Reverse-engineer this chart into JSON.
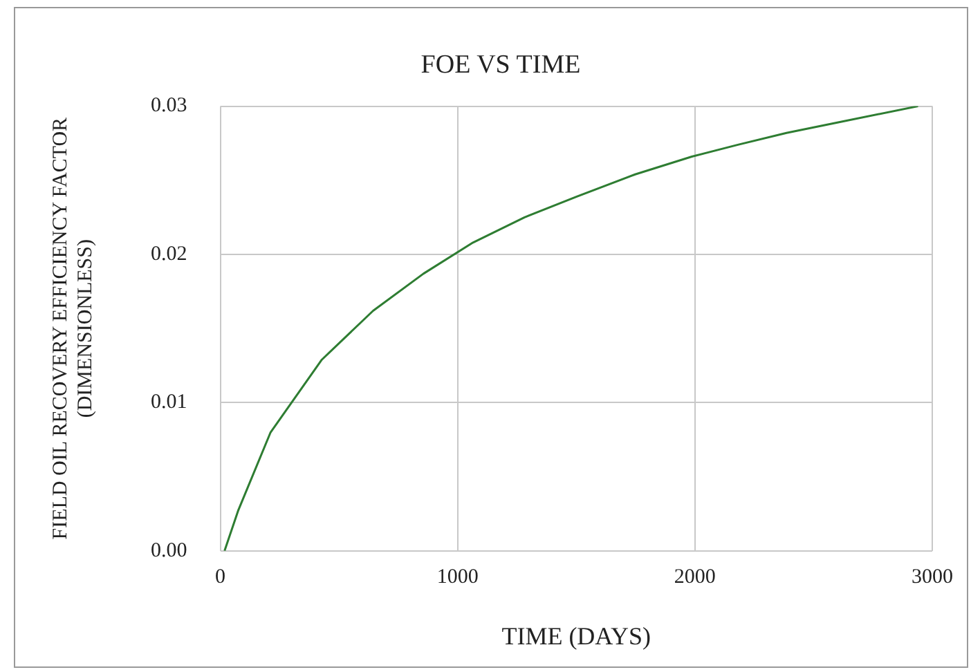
{
  "chart_data": {
    "type": "line",
    "title": "FOE VS TIME",
    "xlabel": "TIME (DAYS)",
    "ylabel": "FIELD OIL RECOVERY EFFICIENCY FACTOR (DIMENSIONLESS)",
    "x": [
      18,
      75,
      212,
      428,
      644,
      856,
      1065,
      1282,
      1502,
      1748,
      1987,
      2181,
      2386,
      2600,
      2940
    ],
    "series": [
      {
        "color": "#2e7d32",
        "values": [
          0,
          0.0027,
          0.008,
          0.0129,
          0.0162,
          0.0187,
          0.0208,
          0.0225,
          0.0239,
          0.0254,
          0.0266,
          0.0274,
          0.0282,
          0.0289,
          0.03
        ]
      }
    ],
    "xlim": [
      0,
      3000
    ],
    "xticks": [
      0,
      1000,
      2000,
      3000
    ],
    "ylim": [
      0,
      0.03
    ],
    "yticks": [
      {
        "value": 0,
        "label": "0.00"
      },
      {
        "value": 0.01,
        "label": "0.01"
      },
      {
        "value": 0.02,
        "label": "0.02"
      },
      {
        "value": 0.03,
        "label": "0.03"
      }
    ],
    "grid": true,
    "legend": false,
    "marker": "none",
    "line_style": "solid"
  }
}
